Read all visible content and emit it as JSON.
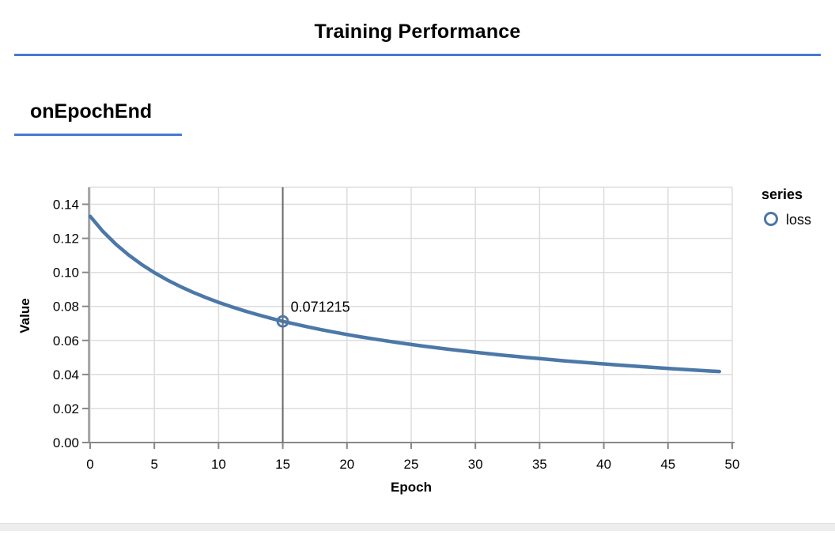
{
  "page": {
    "title": "Training Performance",
    "section_title": "onEpochEnd"
  },
  "chart_data": {
    "type": "line",
    "xlabel": "Epoch",
    "ylabel": "Value",
    "xlim": [
      0,
      50
    ],
    "ylim": [
      0,
      0.15
    ],
    "grid": true,
    "legend_position": "right",
    "legend": {
      "title": "series"
    },
    "x_ticks": [
      0,
      5,
      10,
      15,
      20,
      25,
      30,
      35,
      40,
      45,
      50
    ],
    "y_ticks": [
      "0.00",
      "0.02",
      "0.04",
      "0.06",
      "0.08",
      "0.10",
      "0.12",
      "0.14"
    ],
    "x": [
      0,
      1,
      2,
      3,
      4,
      5,
      6,
      7,
      8,
      9,
      10,
      11,
      12,
      13,
      14,
      15,
      16,
      17,
      18,
      19,
      20,
      21,
      22,
      23,
      24,
      25,
      26,
      27,
      28,
      29,
      30,
      31,
      32,
      33,
      34,
      35,
      36,
      37,
      38,
      39,
      40,
      41,
      42,
      43,
      44,
      45,
      46,
      47,
      48,
      49
    ],
    "series": [
      {
        "name": "loss",
        "color": "#4c78a8",
        "values": [
          0.13297,
          0.124036,
          0.116566,
          0.11019,
          0.10468,
          0.09985,
          0.095571,
          0.091763,
          0.088335,
          0.085228,
          0.082407,
          0.079816,
          0.077438,
          0.07524,
          0.073206,
          0.071215,
          0.069544,
          0.067893,
          0.066336,
          0.06488,
          0.0635,
          0.0622,
          0.06097,
          0.059796,
          0.058688,
          0.057635,
          0.056624,
          0.055668,
          0.054746,
          0.053873,
          0.053028,
          0.052224,
          0.051445,
          0.050706,
          0.049991,
          0.049301,
          0.048635,
          0.047992,
          0.047378,
          0.046778,
          0.046196,
          0.045641,
          0.045103,
          0.044578,
          0.044073,
          0.043578,
          0.043101,
          0.042638,
          0.042187,
          0.041749
        ]
      }
    ],
    "hover": {
      "x": 15,
      "value": 0.071215,
      "display": "0.071215"
    },
    "colors": {
      "line": "#4c78a8",
      "grid": "#dddddd",
      "axis": "#888888",
      "rule": "#6b6b6b",
      "label": "#000000",
      "accent_underline": "#4679d4"
    }
  }
}
